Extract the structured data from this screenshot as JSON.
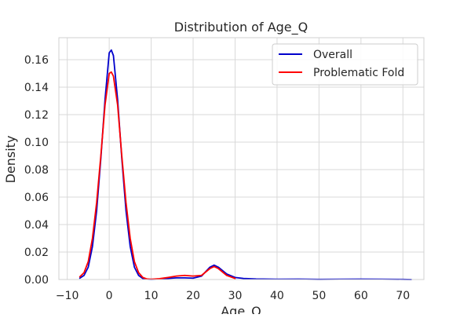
{
  "chart_data": {
    "type": "line",
    "title": "Distribution of Age_Q",
    "xlabel": "Age_Q",
    "ylabel": "Density",
    "xlim": [
      -12,
      75
    ],
    "ylim": [
      0,
      0.176
    ],
    "xticks": [
      -10,
      0,
      10,
      20,
      30,
      40,
      50,
      60,
      70
    ],
    "xtick_labels": [
      "−10",
      "0",
      "10",
      "20",
      "30",
      "40",
      "50",
      "60",
      "70"
    ],
    "yticks": [
      0,
      0.02,
      0.04,
      0.06,
      0.08,
      0.1,
      0.12,
      0.14,
      0.16
    ],
    "ytick_labels": [
      "0.00",
      "0.02",
      "0.04",
      "0.06",
      "0.08",
      "0.10",
      "0.12",
      "0.14",
      "0.16"
    ],
    "grid": true,
    "legend": "top-right",
    "series": [
      {
        "name": "Overall",
        "color": "#0000cc",
        "x": [
          -7,
          -6,
          -5,
          -4,
          -3,
          -2,
          -1,
          0,
          0.5,
          1,
          2,
          3,
          4,
          5,
          6,
          7,
          8,
          9,
          10,
          12,
          14,
          16,
          18,
          20,
          22,
          24,
          25,
          26,
          28,
          30,
          32,
          35,
          40,
          45,
          50,
          55,
          60,
          65,
          70,
          72
        ],
        "y": [
          0.001,
          0.003,
          0.009,
          0.024,
          0.05,
          0.088,
          0.131,
          0.165,
          0.167,
          0.163,
          0.131,
          0.088,
          0.05,
          0.024,
          0.009,
          0.003,
          0.0008,
          0.0002,
          0.0001,
          0.0003,
          0.0008,
          0.0012,
          0.0012,
          0.001,
          0.0025,
          0.009,
          0.0105,
          0.009,
          0.004,
          0.0015,
          0.0008,
          0.0004,
          0.0002,
          0.0003,
          0.0001,
          0.0002,
          0.0003,
          0.0002,
          0.0001,
          0
        ]
      },
      {
        "name": "Problematic Fold",
        "color": "#ff0000",
        "x": [
          -7,
          -6,
          -5,
          -4,
          -3,
          -2,
          -1,
          0,
          0.5,
          1,
          2,
          3,
          4,
          5,
          6,
          7,
          8,
          9,
          10,
          12,
          14,
          16,
          18,
          20,
          22,
          24,
          25,
          26,
          28,
          30
        ],
        "y": [
          0.002,
          0.005,
          0.013,
          0.03,
          0.056,
          0.09,
          0.127,
          0.15,
          0.151,
          0.148,
          0.127,
          0.09,
          0.056,
          0.03,
          0.013,
          0.005,
          0.0015,
          0.0004,
          0.0002,
          0.0006,
          0.0015,
          0.0025,
          0.003,
          0.0025,
          0.003,
          0.008,
          0.0095,
          0.008,
          0.003,
          0.0008
        ]
      }
    ]
  }
}
